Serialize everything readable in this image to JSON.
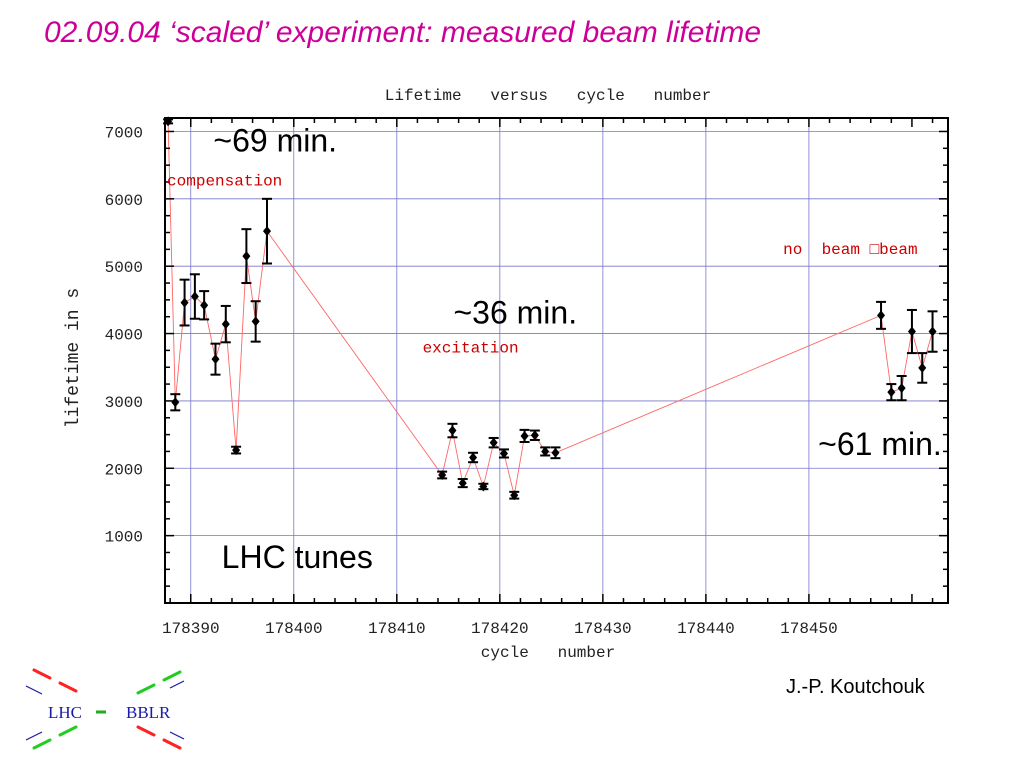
{
  "slide": {
    "title": "02.09.04  ‘scaled’ experiment: measured beam lifetime",
    "author": "J.-P. Koutchouk",
    "logo": {
      "left_text": "LHC",
      "right_text": "BBLR"
    }
  },
  "chart_data": {
    "type": "scatter",
    "title": "Lifetime   versus   cycle   number",
    "xlabel": "cycle   number",
    "ylabel": "lifetime in s",
    "xlim": [
      178387.5,
      178463.5
    ],
    "ylim": [
      0,
      7200
    ],
    "xticks": [
      178390,
      178400,
      178410,
      178420,
      178430,
      178440,
      178450
    ],
    "yticks": [
      1000,
      2000,
      3000,
      4000,
      5000,
      6000,
      7000
    ],
    "grid": true,
    "error_bars": true,
    "points": [
      {
        "x": 178387.8,
        "y": 7150,
        "err": 30
      },
      {
        "x": 178388.5,
        "y": 2980,
        "err": 120
      },
      {
        "x": 178389.4,
        "y": 4460,
        "err": 340
      },
      {
        "x": 178390.4,
        "y": 4550,
        "err": 330
      },
      {
        "x": 178391.3,
        "y": 4420,
        "err": 210
      },
      {
        "x": 178392.4,
        "y": 3620,
        "err": 230
      },
      {
        "x": 178393.4,
        "y": 4140,
        "err": 270
      },
      {
        "x": 178394.4,
        "y": 2270,
        "err": 50
      },
      {
        "x": 178395.4,
        "y": 5150,
        "err": 400
      },
      {
        "x": 178396.3,
        "y": 4180,
        "err": 300
      },
      {
        "x": 178397.4,
        "y": 5520,
        "err": 480
      },
      {
        "x": 178414.4,
        "y": 1900,
        "err": 50
      },
      {
        "x": 178415.4,
        "y": 2560,
        "err": 100
      },
      {
        "x": 178416.4,
        "y": 1780,
        "err": 60
      },
      {
        "x": 178417.4,
        "y": 2160,
        "err": 70
      },
      {
        "x": 178418.4,
        "y": 1730,
        "err": 40
      },
      {
        "x": 178419.4,
        "y": 2380,
        "err": 70
      },
      {
        "x": 178420.4,
        "y": 2220,
        "err": 60
      },
      {
        "x": 178421.4,
        "y": 1600,
        "err": 50
      },
      {
        "x": 178422.4,
        "y": 2480,
        "err": 90
      },
      {
        "x": 178423.4,
        "y": 2490,
        "err": 70
      },
      {
        "x": 178424.4,
        "y": 2250,
        "err": 60
      },
      {
        "x": 178425.4,
        "y": 2230,
        "err": 80
      },
      {
        "x": 178457.0,
        "y": 4270,
        "err": 200
      },
      {
        "x": 178458.0,
        "y": 3130,
        "err": 120
      },
      {
        "x": 178459.0,
        "y": 3190,
        "err": 180
      },
      {
        "x": 178460.0,
        "y": 4030,
        "err": 320
      },
      {
        "x": 178461.0,
        "y": 3490,
        "err": 220
      },
      {
        "x": 178462.0,
        "y": 4030,
        "err": 300
      }
    ],
    "annotations": [
      {
        "text": "~69 min.",
        "x": 178392.2,
        "y": 6700,
        "color": "#000000",
        "size": "large"
      },
      {
        "text": "compensation",
        "x": 178387.7,
        "y": 6200,
        "color": "#cc0000",
        "size": "small"
      },
      {
        "text": "no  beam □beam",
        "x": 178447.5,
        "y": 5180,
        "color": "#cc0000",
        "size": "small"
      },
      {
        "text": "~36 min.",
        "x": 178415.5,
        "y": 4150,
        "color": "#000000",
        "size": "large"
      },
      {
        "text": "excitation",
        "x": 178412.5,
        "y": 3720,
        "color": "#cc0000",
        "size": "small"
      },
      {
        "text": "~61 min.",
        "x": 178450.9,
        "y": 2200,
        "color": "#000000",
        "size": "large"
      },
      {
        "text": "LHC tunes",
        "x": 178393.0,
        "y": 520,
        "color": "#000000",
        "size": "large"
      }
    ],
    "colors": {
      "connector": "#ff6666",
      "grid": "#7777cc",
      "points": "#000000",
      "label": "#cc0000"
    }
  }
}
